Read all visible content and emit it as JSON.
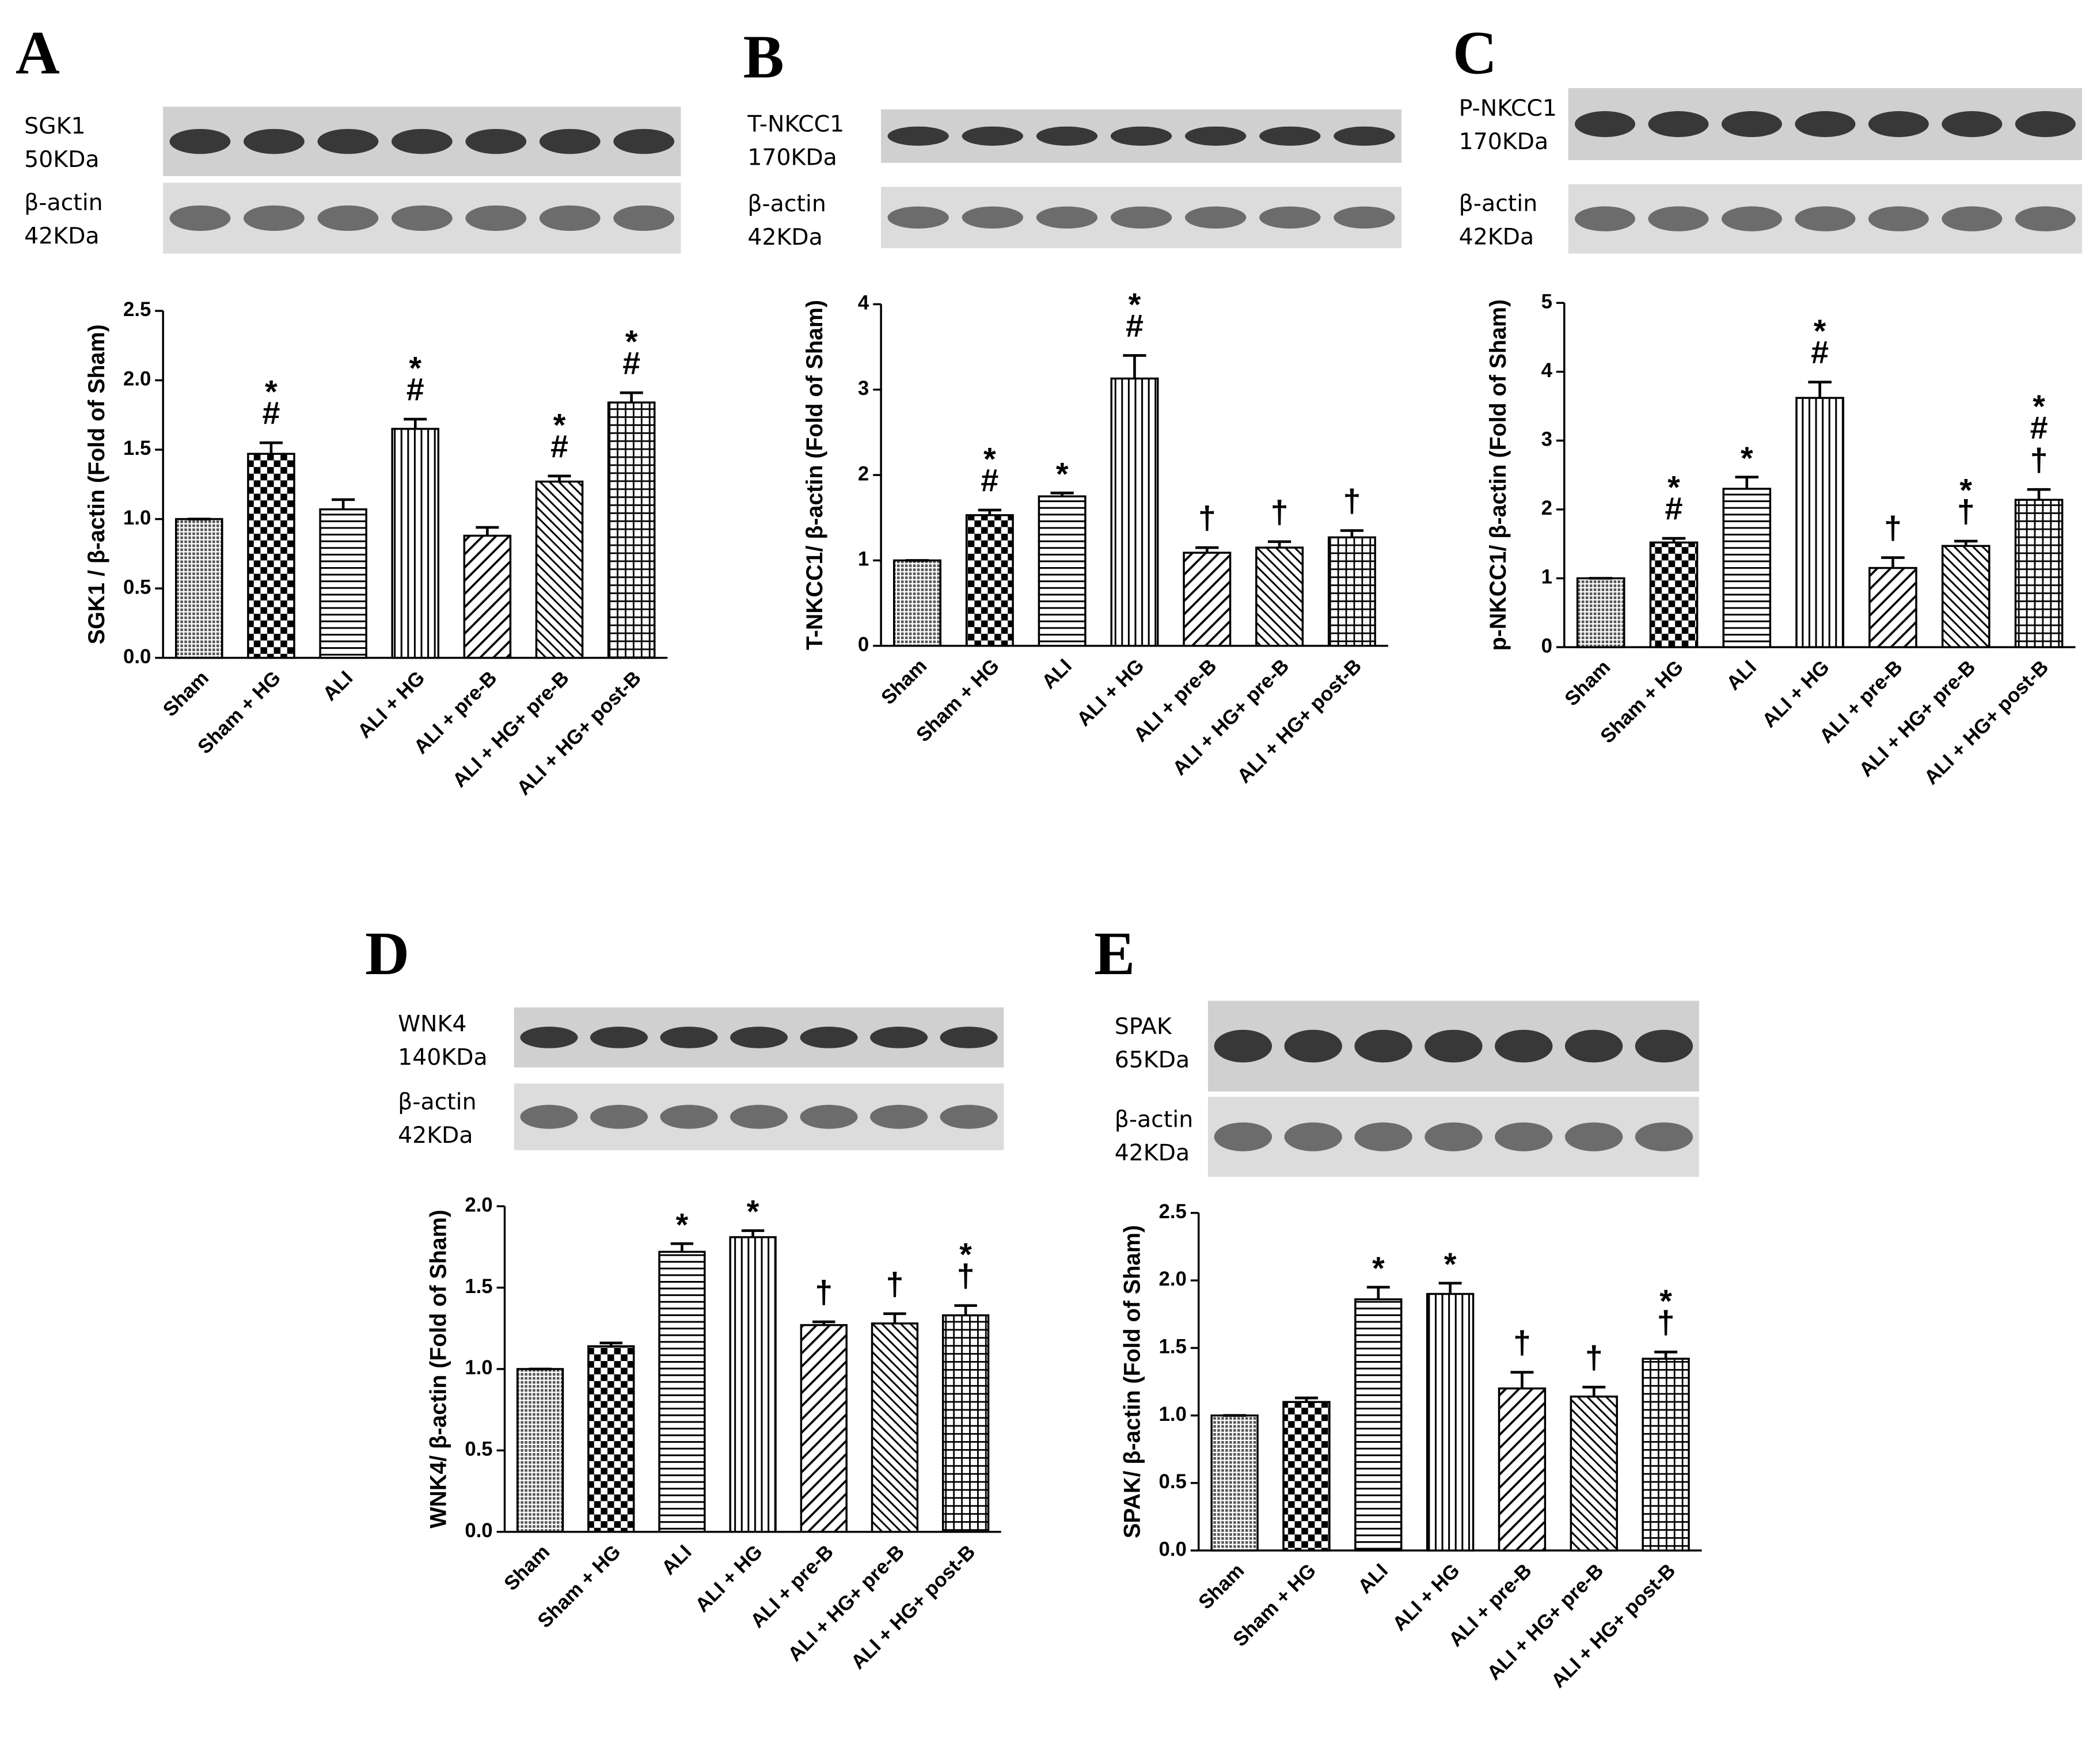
{
  "chart_data": [
    {
      "type": "bar",
      "panel": "A",
      "blots": [
        {
          "protein": "SGK1",
          "size": "50KDa"
        },
        {
          "protein": "β-actin",
          "size": "42KDa"
        }
      ],
      "ylabel": "SGK1 / β-actin (Fold of Sham)",
      "categories": [
        "Sham",
        "Sham + HG",
        "ALI",
        "ALI + HG",
        "ALI + pre-B",
        "ALI + HG+ pre-B",
        "ALI + HG+ post-B"
      ],
      "values": [
        1.0,
        1.47,
        1.07,
        1.65,
        0.88,
        1.27,
        1.84
      ],
      "errors": [
        0,
        0.08,
        0.07,
        0.07,
        0.06,
        0.04,
        0.07
      ],
      "markers": [
        null,
        [
          "*",
          "#"
        ],
        null,
        [
          "*",
          "#"
        ],
        null,
        [
          "*",
          "#"
        ],
        [
          "*",
          "#"
        ]
      ],
      "ylim": [
        0,
        2.5
      ],
      "yticks": [
        {
          "value": 0,
          "label": "0.0"
        },
        {
          "value": 0.5,
          "label": "0.5"
        },
        {
          "value": 1,
          "label": "1.0"
        },
        {
          "value": 1.5,
          "label": "1.5"
        },
        {
          "value": 2,
          "label": "2.0"
        },
        {
          "value": 2.5,
          "label": "2.5"
        }
      ]
    },
    {
      "type": "bar",
      "panel": "B",
      "blots": [
        {
          "protein": "T-NKCC1",
          "size": "170KDa"
        },
        {
          "protein": "β-actin",
          "size": "42KDa"
        }
      ],
      "ylabel": "T-NKCC1/ β-actin (Fold of Sham)",
      "categories": [
        "Sham",
        "Sham + HG",
        "ALI",
        "ALI + HG",
        "ALI + pre-B",
        "ALI + HG+ pre-B",
        "ALI + HG+ post-B"
      ],
      "values": [
        1.0,
        1.53,
        1.75,
        3.13,
        1.09,
        1.15,
        1.27
      ],
      "errors": [
        0,
        0.06,
        0.04,
        0.27,
        0.06,
        0.07,
        0.08
      ],
      "markers": [
        null,
        [
          "*",
          "#"
        ],
        [
          "*"
        ],
        [
          "*",
          "#"
        ],
        [
          "†"
        ],
        [
          "†"
        ],
        [
          "†"
        ]
      ],
      "ylim": [
        0,
        4
      ],
      "yticks": [
        0,
        1,
        2,
        3,
        4
      ]
    },
    {
      "type": "bar",
      "panel": "C",
      "blots": [
        {
          "protein": "P-NKCC1",
          "size": "170KDa"
        },
        {
          "protein": "β-actin",
          "size": "42KDa"
        }
      ],
      "ylabel": "p-NKCC1/ β-actin (Fold of Sham)",
      "categories": [
        "Sham",
        "Sham + HG",
        "ALI",
        "ALI + HG",
        "ALI + pre-B",
        "ALI + HG+ pre-B",
        "ALI + HG+ post-B"
      ],
      "values": [
        1.0,
        1.52,
        2.3,
        3.62,
        1.15,
        1.47,
        2.14
      ],
      "errors": [
        0,
        0.06,
        0.17,
        0.23,
        0.15,
        0.07,
        0.15
      ],
      "markers": [
        null,
        [
          "*",
          "#"
        ],
        [
          "*"
        ],
        [
          "*",
          "#"
        ],
        [
          "†"
        ],
        [
          "*",
          "†"
        ],
        [
          "*",
          "#",
          "†"
        ]
      ],
      "ylim": [
        0,
        5
      ],
      "yticks": [
        0,
        1,
        2,
        3,
        4,
        5
      ]
    },
    {
      "type": "bar",
      "panel": "D",
      "blots": [
        {
          "protein": "WNK4",
          "size": "140KDa"
        },
        {
          "protein": "β-actin",
          "size": "42KDa"
        }
      ],
      "ylabel": "WNK4/ β-actin (Fold of Sham)",
      "categories": [
        "Sham",
        "Sham + HG",
        "ALI",
        "ALI + HG",
        "ALI + pre-B",
        "ALI + HG+ pre-B",
        "ALI + HG+ post-B"
      ],
      "values": [
        1.0,
        1.14,
        1.72,
        1.81,
        1.27,
        1.28,
        1.33
      ],
      "errors": [
        0,
        0.02,
        0.05,
        0.04,
        0.02,
        0.06,
        0.06
      ],
      "markers": [
        null,
        null,
        [
          "*"
        ],
        [
          "*"
        ],
        [
          "†"
        ],
        [
          "†"
        ],
        [
          "*",
          "†"
        ]
      ],
      "ylim": [
        0,
        2
      ],
      "yticks": [
        {
          "value": 0,
          "label": "0.0"
        },
        {
          "value": 0.5,
          "label": "0.5"
        },
        {
          "value": 1,
          "label": "1.0"
        },
        {
          "value": 1.5,
          "label": "1.5"
        },
        {
          "value": 2,
          "label": "2.0"
        }
      ]
    },
    {
      "type": "bar",
      "panel": "E",
      "blots": [
        {
          "protein": "SPAK",
          "size": "65KDa"
        },
        {
          "protein": "β-actin",
          "size": "42KDa"
        }
      ],
      "ylabel": "SPAK/ β-actin (Fold of Sham)",
      "categories": [
        "Sham",
        "Sham + HG",
        "ALI",
        "ALI + HG",
        "ALI + pre-B",
        "ALI + HG+ pre-B",
        "ALI + HG+ post-B"
      ],
      "values": [
        1.0,
        1.1,
        1.86,
        1.9,
        1.2,
        1.14,
        1.42
      ],
      "errors": [
        0,
        0.03,
        0.09,
        0.08,
        0.12,
        0.07,
        0.05
      ],
      "markers": [
        null,
        null,
        [
          "*"
        ],
        [
          "*"
        ],
        [
          "†"
        ],
        [
          "†"
        ],
        [
          "*",
          "†"
        ]
      ],
      "ylim": [
        0,
        2.5
      ],
      "yticks": [
        {
          "value": 0,
          "label": "0.0"
        },
        {
          "value": 0.5,
          "label": "0.5"
        },
        {
          "value": 1,
          "label": "1.0"
        },
        {
          "value": 1.5,
          "label": "1.5"
        },
        {
          "value": 2,
          "label": "2.0"
        },
        {
          "value": 2.5,
          "label": "2.5"
        }
      ]
    }
  ]
}
